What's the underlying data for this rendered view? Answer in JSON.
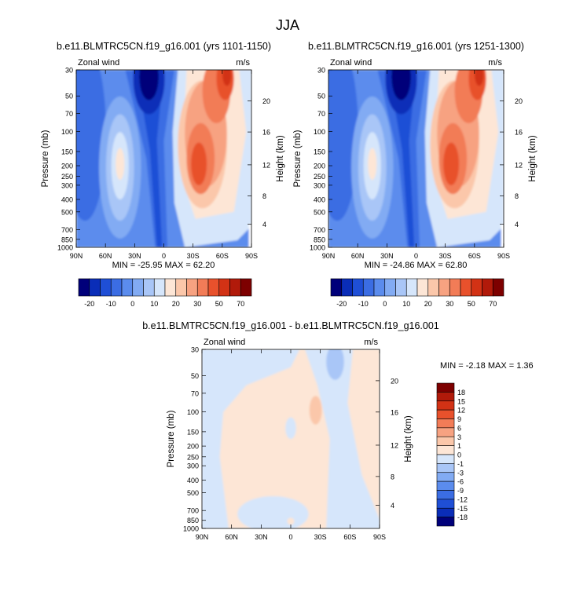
{
  "figure": {
    "title": "JJA"
  },
  "chart_data": [
    {
      "type": "heatmap",
      "title": "b.e11.BLMTRC5CN.f19_g16.001 (yrs 1101-1150)",
      "left_label": "Zonal wind",
      "right_label": "m/s",
      "ylabel": "Pressure (mb)",
      "ylabel_right": "Height (km)",
      "x_ticks": [
        "90N",
        "60N",
        "30N",
        "0",
        "30S",
        "60S",
        "90S"
      ],
      "y_ticks": [
        "30",
        "50",
        "70",
        "100",
        "150",
        "200",
        "250",
        "300",
        "400",
        "500",
        "700",
        "850",
        "1000"
      ],
      "height_ticks": [
        "20",
        "16",
        "12",
        "8",
        "4"
      ],
      "stats": "MIN = -25.95  MAX =  62.20",
      "levels": [
        -20,
        -15,
        -10,
        -5,
        0,
        5,
        10,
        15,
        20,
        25,
        30,
        40,
        50,
        60,
        70
      ],
      "colorbar_labels": [
        "-20",
        "-10",
        "0",
        "10",
        "20",
        "30",
        "50",
        "70"
      ],
      "colors": [
        "#00007a",
        "#0a2db8",
        "#1f4fd6",
        "#3b6de3",
        "#5b8ced",
        "#82abf3",
        "#a9c6f7",
        "#d6e6fb",
        "#fde6d6",
        "#fbc7aa",
        "#f7a281",
        "#f27c57",
        "#e8512c",
        "#d23215",
        "#b11a0a",
        "#7d0000"
      ],
      "min": -25.95,
      "max": 62.2
    },
    {
      "type": "heatmap",
      "title": "b.e11.BLMTRC5CN.f19_g16.001 (yrs 1251-1300)",
      "left_label": "Zonal wind",
      "right_label": "m/s",
      "ylabel": "Pressure (mb)",
      "ylabel_right": "Height (km)",
      "x_ticks": [
        "90N",
        "60N",
        "30N",
        "0",
        "30S",
        "60S",
        "90S"
      ],
      "y_ticks": [
        "30",
        "50",
        "70",
        "100",
        "150",
        "200",
        "250",
        "300",
        "400",
        "500",
        "700",
        "850",
        "1000"
      ],
      "height_ticks": [
        "20",
        "16",
        "12",
        "8",
        "4"
      ],
      "stats": "MIN = -24.86  MAX =  62.80",
      "levels": [
        -20,
        -15,
        -10,
        -5,
        0,
        5,
        10,
        15,
        20,
        25,
        30,
        40,
        50,
        60,
        70
      ],
      "colorbar_labels": [
        "-20",
        "-10",
        "0",
        "10",
        "20",
        "30",
        "50",
        "70"
      ],
      "colors": [
        "#00007a",
        "#0a2db8",
        "#1f4fd6",
        "#3b6de3",
        "#5b8ced",
        "#82abf3",
        "#a9c6f7",
        "#d6e6fb",
        "#fde6d6",
        "#fbc7aa",
        "#f7a281",
        "#f27c57",
        "#e8512c",
        "#d23215",
        "#b11a0a",
        "#7d0000"
      ],
      "min": -24.86,
      "max": 62.8
    },
    {
      "type": "heatmap",
      "title": "b.e11.BLMTRC5CN.f19_g16.001 - b.e11.BLMTRC5CN.f19_g16.001",
      "left_label": "Zonal wind",
      "right_label": "m/s",
      "ylabel": "Pressure (mb)",
      "ylabel_right": "Height (km)",
      "x_ticks": [
        "90N",
        "60N",
        "30N",
        "0",
        "30S",
        "60S",
        "90S"
      ],
      "y_ticks": [
        "30",
        "50",
        "70",
        "100",
        "150",
        "200",
        "250",
        "300",
        "400",
        "500",
        "700",
        "850",
        "1000"
      ],
      "height_ticks": [
        "20",
        "16",
        "12",
        "8",
        "4"
      ],
      "stats": "MIN = -2.18  MAX =  1.36",
      "levels": [
        -18,
        -15,
        -12,
        -9,
        -6,
        -3,
        -1,
        0,
        1,
        3,
        6,
        9,
        12,
        15,
        18
      ],
      "colorbar_labels": [
        "18",
        "15",
        "12",
        "9",
        "6",
        "3",
        "1",
        "0",
        "-1",
        "-3",
        "-6",
        "-9",
        "-12",
        "-15",
        "-18"
      ],
      "colors": [
        "#00007a",
        "#0a2db8",
        "#1f4fd6",
        "#3b6de3",
        "#5b8ced",
        "#82abf3",
        "#a9c6f7",
        "#d6e6fb",
        "#fde6d6",
        "#fbc7aa",
        "#f7a281",
        "#f27c57",
        "#e8512c",
        "#d23215",
        "#b11a0a",
        "#7d0000"
      ],
      "min": -2.18,
      "max": 1.36
    }
  ]
}
